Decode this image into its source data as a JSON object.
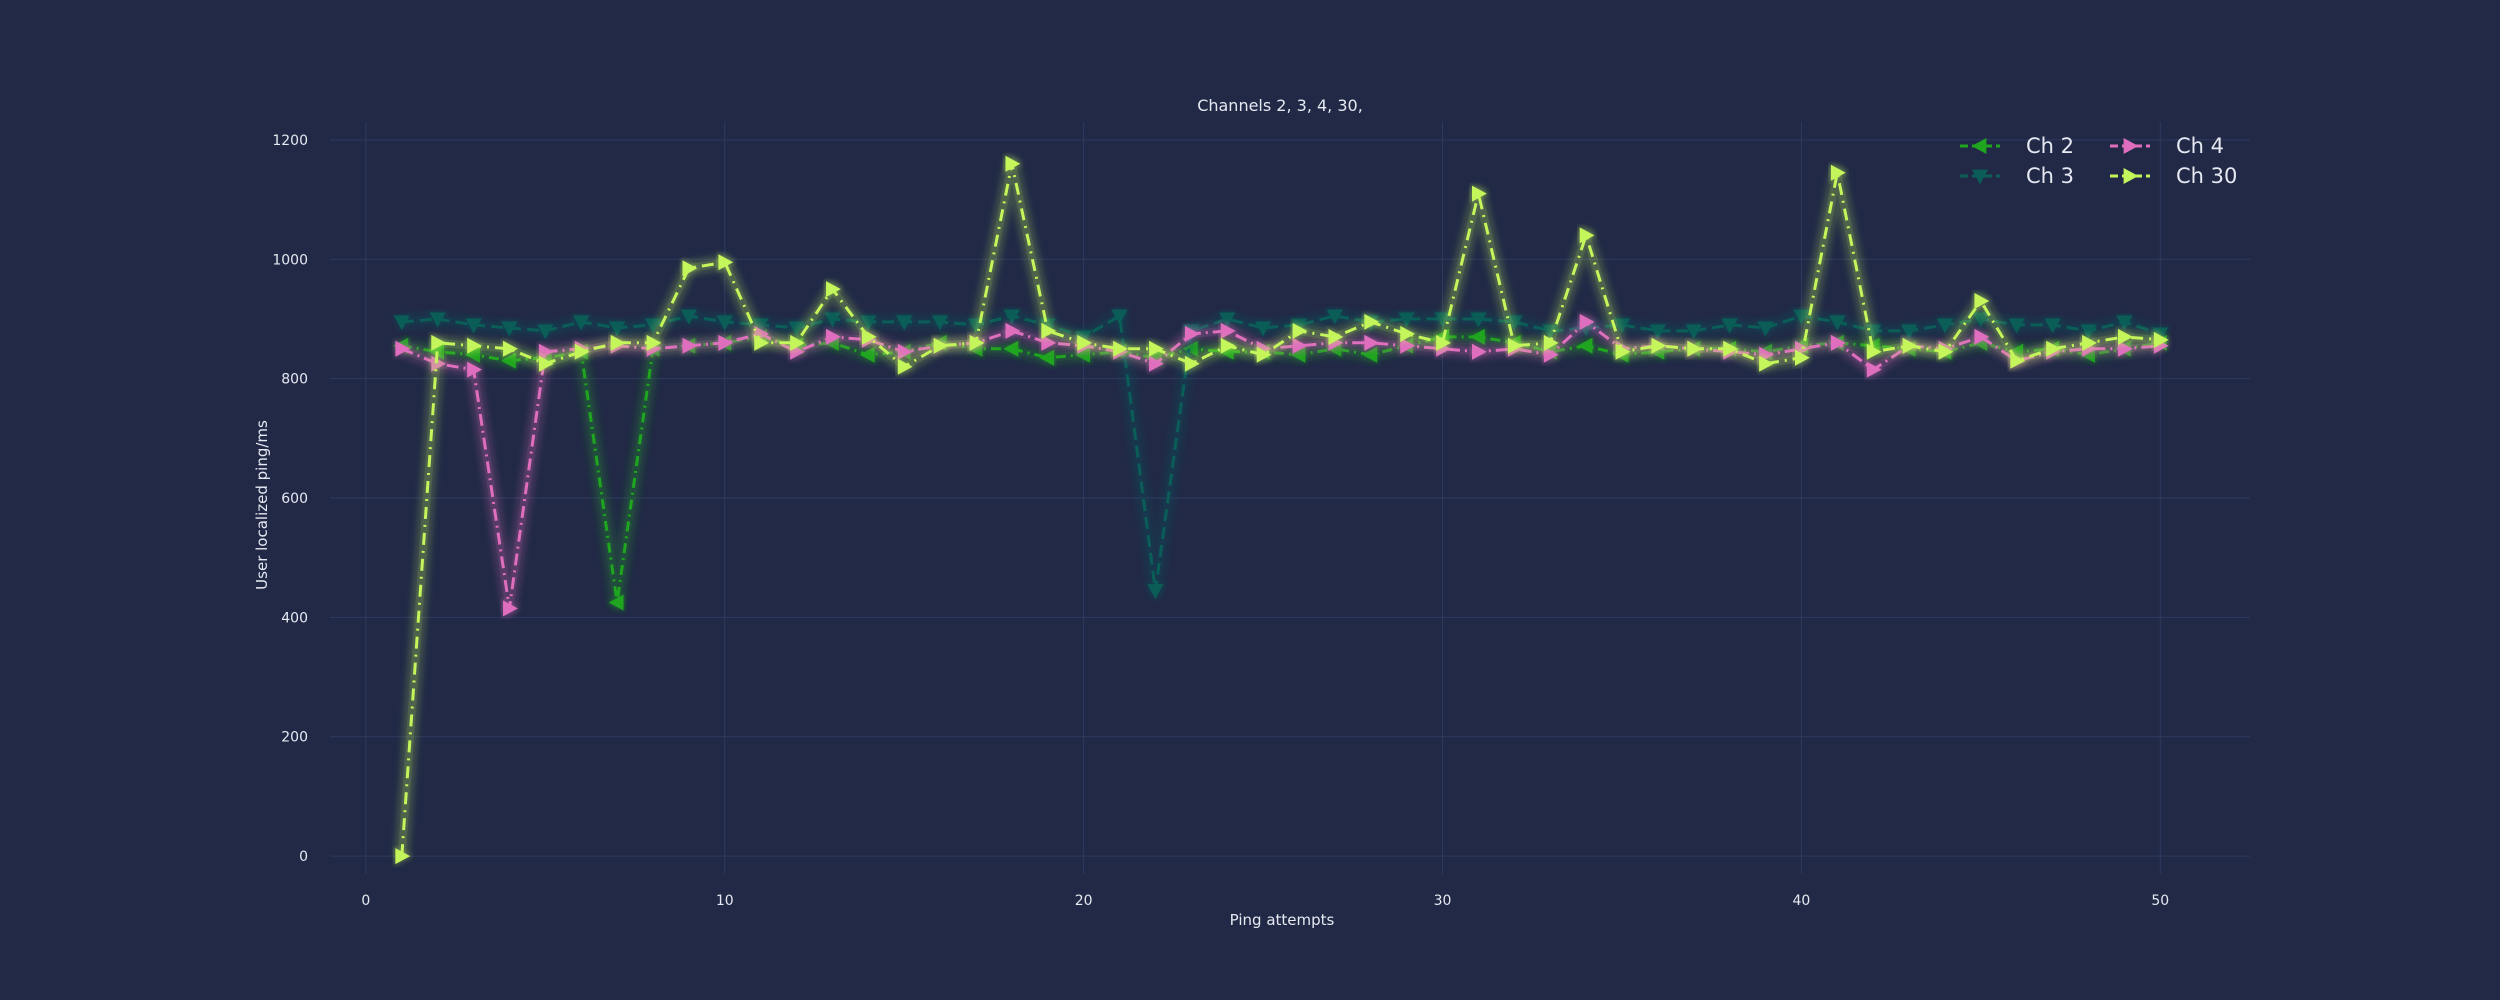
{
  "chart_data": {
    "type": "line",
    "title": "Channels  2, 3, 4, 30,",
    "xlabel": "Ping attempts",
    "ylabel": "User localized ping/ms",
    "xlim": [
      -1,
      52.5
    ],
    "ylim": [
      -30,
      1230
    ],
    "xticks": [
      0,
      10,
      20,
      30,
      40,
      50
    ],
    "yticks": [
      0,
      200,
      400,
      600,
      800,
      1000,
      1200
    ],
    "grid": true,
    "legend": {
      "placement": "top-right",
      "columns": 2
    },
    "x": [
      1,
      2,
      3,
      4,
      5,
      6,
      7,
      8,
      9,
      10,
      11,
      12,
      13,
      14,
      15,
      16,
      17,
      18,
      19,
      20,
      21,
      22,
      23,
      24,
      25,
      26,
      27,
      28,
      29,
      30,
      31,
      32,
      33,
      34,
      35,
      36,
      37,
      38,
      39,
      40,
      41,
      42,
      43,
      44,
      45,
      46,
      47,
      48,
      49,
      50
    ],
    "series": [
      {
        "name": "Ch 2",
        "color": "#1fa51f",
        "marker": "tri-left",
        "dash": "10,5,2,5",
        "values": [
          855,
          845,
          840,
          830,
          835,
          845,
          425,
          850,
          855,
          860,
          870,
          855,
          860,
          840,
          845,
          860,
          850,
          850,
          835,
          840,
          845,
          835,
          850,
          845,
          845,
          840,
          850,
          840,
          855,
          870,
          870,
          860,
          845,
          855,
          840,
          845,
          850,
          850,
          845,
          855,
          860,
          855,
          850,
          845,
          860,
          845,
          850,
          840,
          850,
          860
        ]
      },
      {
        "name": "Ch 3",
        "color": "#0b5e58",
        "marker": "tri-down",
        "dash": "12,6",
        "values": [
          895,
          900,
          890,
          885,
          880,
          895,
          885,
          890,
          905,
          895,
          890,
          885,
          900,
          895,
          895,
          895,
          890,
          905,
          890,
          870,
          905,
          445,
          880,
          900,
          885,
          890,
          905,
          895,
          900,
          900,
          900,
          895,
          880,
          885,
          890,
          880,
          880,
          890,
          885,
          905,
          895,
          880,
          880,
          890,
          900,
          890,
          890,
          880,
          895,
          875
        ]
      },
      {
        "name": "Ch 4",
        "color": "#df6fbe",
        "marker": "tri-right",
        "dash": "12,5,2,5",
        "values": [
          850,
          825,
          815,
          415,
          845,
          850,
          855,
          850,
          855,
          860,
          875,
          845,
          870,
          865,
          845,
          855,
          860,
          880,
          860,
          855,
          845,
          825,
          875,
          880,
          850,
          855,
          860,
          860,
          855,
          850,
          845,
          850,
          840,
          895,
          850,
          855,
          850,
          845,
          840,
          850,
          860,
          815,
          855,
          850,
          870,
          830,
          845,
          850,
          850,
          855
        ]
      },
      {
        "name": "Ch 30",
        "color": "#c4f55a",
        "marker": "tri-right",
        "dash": "12,6,2,6",
        "values": [
          0,
          860,
          855,
          850,
          825,
          845,
          860,
          860,
          985,
          995,
          860,
          860,
          950,
          870,
          820,
          855,
          860,
          1160,
          880,
          860,
          850,
          850,
          825,
          855,
          840,
          880,
          870,
          895,
          875,
          860,
          1110,
          855,
          860,
          1040,
          845,
          855,
          850,
          850,
          825,
          835,
          1145,
          845,
          855,
          845,
          930,
          830,
          850,
          860,
          870,
          865
        ]
      }
    ]
  }
}
